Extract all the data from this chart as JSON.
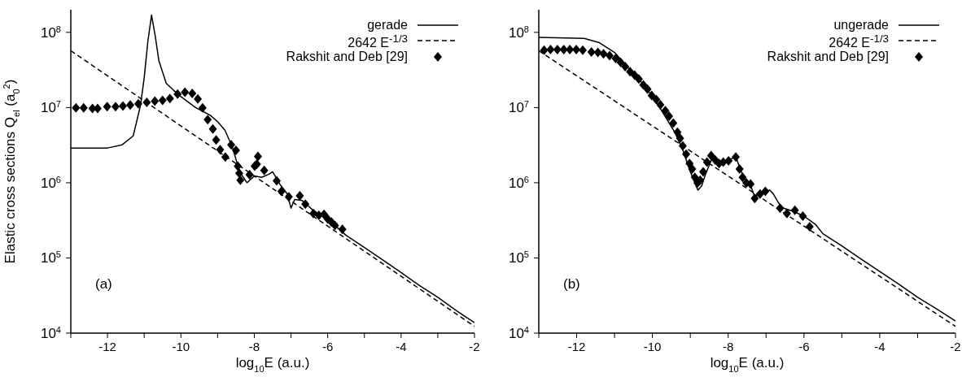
{
  "chart_data": [
    {
      "type": "line",
      "xlabel": "log$_{10}$E (a.u.)",
      "ylabel": "Elastic cross sections Q$_{el}$ (a$_{0}$$^{2}$)",
      "log": true,
      "legend": "top right",
      "xlim": [
        -13,
        -2
      ],
      "xticks": [
        {
          "value": -13,
          "label": null
        },
        -12,
        {
          "value": -11,
          "label": null
        },
        -10,
        {
          "value": -9,
          "label": null
        },
        -8,
        {
          "value": -7,
          "label": null
        },
        -6,
        {
          "value": -5,
          "label": null
        },
        -4,
        {
          "value": -3,
          "label": null
        },
        -2
      ],
      "ylim": [
        10000,
        200000000
      ],
      "yticks": [
        {
          "value": 10000,
          "label": "10$^{4}$"
        },
        {
          "value": 100000,
          "label": "10$^{5}$"
        },
        {
          "value": 1000000,
          "label": "10$^{6}$"
        },
        {
          "value": 10000000,
          "label": "10$^{7}$"
        },
        {
          "value": 100000000,
          "label": "10$^{8}$"
        }
      ],
      "annotations": [
        "(a)"
      ],
      "series": [
        {
          "name": "gerade",
          "type": "line",
          "color": "#000000",
          "line_style": "solid",
          "marker": "none",
          "x": [
            -13,
            -12,
            -11.6,
            -11.3,
            -11.1,
            -11.0,
            -10.9,
            -10.8,
            -10.7,
            -10.6,
            -10.4,
            -10.2,
            -10.0,
            -9.6,
            -9.2,
            -9.0,
            -8.8,
            -8.6,
            -8.4,
            -8.2,
            -8.0,
            -7.8,
            -7.6,
            -7.5,
            -7.3,
            -7.1,
            -7.0,
            -6.9,
            -6.7,
            -6.6,
            -6.4,
            -6.0,
            -5.5,
            -5.0,
            -4.5,
            -4.0,
            -3.5,
            -3.0,
            -2.5,
            -2.0
          ],
          "values": [
            2900000.0,
            2900000.0,
            3200000.0,
            4200000.0,
            10700000.0,
            25000000.0,
            76000000.0,
            170000000.0,
            90000000.0,
            42000000.0,
            21000000.0,
            17000000.0,
            14000000.0,
            10000000.0,
            7900000.0,
            6500000.0,
            5000000.0,
            3000000.0,
            1400000.0,
            1000000.0,
            1230000.0,
            1180000.0,
            1300000.0,
            1400000.0,
            950000.0,
            710000.0,
            460000.0,
            600000.0,
            580000.0,
            530000.0,
            430000.0,
            330000.0,
            200000.0,
            138000.0,
            94000.0,
            64000.0,
            43000.0,
            30000.0,
            20000.0,
            13800.0
          ]
        },
        {
          "name": "2642 E$^{-1/3}$",
          "type": "line",
          "color": "#000000",
          "line_style": "dashed",
          "marker": "none",
          "x": [
            -13,
            -2
          ],
          "values": [
            57000000.0,
            12300.0
          ]
        },
        {
          "name": "Rakshit and Deb [29]",
          "type": "scatter",
          "color": "#000000",
          "marker": "diamond",
          "x": [
            -12.86,
            -12.65,
            -12.41,
            -12.27,
            -12.01,
            -11.78,
            -11.58,
            -11.38,
            -11.16,
            -10.93,
            -10.71,
            -10.5,
            -10.3,
            -10.09,
            -9.89,
            -9.69,
            -9.54,
            -9.41,
            -9.27,
            -9.13,
            -9.04,
            -8.93,
            -8.79,
            -8.63,
            -8.5,
            -8.45,
            -8.41,
            -8.38,
            -8.13,
            -7.99,
            -7.93,
            -7.9,
            -7.73,
            -7.39,
            -7.26,
            -7.06,
            -6.76,
            -6.61,
            -6.39,
            -6.24,
            -6.1,
            -6.0,
            -5.9,
            -5.8,
            -5.6
          ],
          "values": [
            9900000.0,
            9900000.0,
            9700000.0,
            9700000.0,
            10300000.0,
            10300000.0,
            10500000.0,
            10800000.0,
            11200000.0,
            11700000.0,
            12200000.0,
            12500000.0,
            13200000.0,
            15100000.0,
            16000000.0,
            15400000.0,
            13000000.0,
            9900000.0,
            6900000.0,
            5200000.0,
            3700000.0,
            2760000.0,
            2200000.0,
            3200000.0,
            2700000.0,
            1660000.0,
            1340000.0,
            1080000.0,
            1280000.0,
            1660000.0,
            1770000.0,
            2240000.0,
            1460000.0,
            1060000.0,
            770000.0,
            650000.0,
            670000.0,
            520000.0,
            390000.0,
            370000.0,
            380000.0,
            330000.0,
            300000.0,
            270000.0,
            240000.0
          ]
        }
      ]
    },
    {
      "type": "line",
      "xlabel": "log$_{10}$E (a.u.)",
      "log": true,
      "legend": "top right",
      "xlim": [
        -13,
        -2
      ],
      "xticks": [
        {
          "value": -13,
          "label": null
        },
        -12,
        {
          "value": -11,
          "label": null
        },
        -10,
        {
          "value": -9,
          "label": null
        },
        -8,
        {
          "value": -7,
          "label": null
        },
        -6,
        {
          "value": -5,
          "label": null
        },
        -4,
        {
          "value": -3,
          "label": null
        },
        -2
      ],
      "ylim": [
        10000,
        200000000
      ],
      "yticks": [
        {
          "value": 10000,
          "label": "10$^{4}$"
        },
        {
          "value": 100000,
          "label": "10$^{5}$"
        },
        {
          "value": 1000000,
          "label": "10$^{6}$"
        },
        {
          "value": 10000000,
          "label": "10$^{7}$"
        },
        {
          "value": 100000000,
          "label": "10$^{8}$"
        }
      ],
      "annotations": [
        "(b)"
      ],
      "series": [
        {
          "name": "ungerade",
          "type": "line",
          "color": "#000000",
          "line_style": "solid",
          "marker": "none",
          "x": [
            -13,
            -11.8,
            -11.4,
            -11.0,
            -10.6,
            -10.2,
            -9.8,
            -9.4,
            -9.2,
            -9.0,
            -8.8,
            -8.7,
            -8.6,
            -8.4,
            -8.2,
            -8.0,
            -7.8,
            -7.6,
            -7.4,
            -7.3,
            -7.1,
            -6.9,
            -6.8,
            -6.6,
            -6.3,
            -6.0,
            -5.7,
            -5.5,
            -5.0,
            -4.5,
            -4.0,
            -3.5,
            -3.0,
            -2.5,
            -2.0
          ],
          "values": [
            86000000.0,
            83000000.0,
            73000000.0,
            54000000.0,
            32000000.0,
            19500000.0,
            9900000.0,
            4600000.0,
            2750000.0,
            1400000.0,
            800000.0,
            910000.0,
            1290000.0,
            2300000.0,
            1900000.0,
            2000000.0,
            2200000.0,
            1200000.0,
            900000.0,
            650000.0,
            750000.0,
            800000.0,
            700000.0,
            470000.0,
            420000.0,
            360000.0,
            280000.0,
            210000.0,
            145000.0,
            97000.0,
            66000.0,
            45000.0,
            30000.0,
            21000.0,
            14500.0
          ]
        },
        {
          "name": "2642 E$^{-1/3}$",
          "type": "line",
          "color": "#000000",
          "line_style": "dashed",
          "marker": "none",
          "x": [
            -13,
            -2
          ],
          "values": [
            57000000.0,
            12300.0
          ]
        },
        {
          "name": "Rakshit and Deb [29]",
          "type": "scatter",
          "color": "#000000",
          "marker": "diamond",
          "x": [
            -12.86,
            -12.69,
            -12.51,
            -12.34,
            -12.18,
            -12.01,
            -11.84,
            -11.61,
            -11.44,
            -11.29,
            -11.13,
            -10.97,
            -10.84,
            -10.72,
            -10.59,
            -10.47,
            -10.36,
            -10.24,
            -10.13,
            -10.02,
            -9.9,
            -9.79,
            -9.66,
            -9.56,
            -9.45,
            -9.34,
            -9.27,
            -9.2,
            -9.11,
            -9.02,
            -8.95,
            -8.88,
            -8.81,
            -8.74,
            -8.66,
            -8.56,
            -8.45,
            -8.34,
            -8.24,
            -8.13,
            -7.99,
            -7.8,
            -7.7,
            -7.62,
            -7.52,
            -7.41,
            -7.3,
            -7.16,
            -7.02,
            -6.63,
            -6.45,
            -6.24,
            -6.03,
            -5.85
          ],
          "values": [
            58000000.0,
            59000000.0,
            59000000.0,
            59000000.0,
            59000000.0,
            59000000.0,
            58000000.0,
            55000000.0,
            54000000.0,
            52000000.0,
            49000000.0,
            45000000.0,
            40000000.0,
            35000000.0,
            30000000.0,
            27000000.0,
            24000000.0,
            20000000.0,
            17600000.0,
            14500000.0,
            12800000.0,
            10900000.0,
            9100000.0,
            7700000.0,
            6200000.0,
            4700000.0,
            3900000.0,
            3100000.0,
            2400000.0,
            1800000.0,
            1520000.0,
            1180000.0,
            990000.0,
            1080000.0,
            1400000.0,
            1880000.0,
            2300000.0,
            2000000.0,
            1800000.0,
            1880000.0,
            1950000.0,
            2200000.0,
            1520000.0,
            1180000.0,
            1000000.0,
            960000.0,
            620000.0,
            710000.0,
            770000.0,
            460000.0,
            390000.0,
            430000.0,
            360000.0,
            260000.0
          ]
        }
      ]
    }
  ]
}
